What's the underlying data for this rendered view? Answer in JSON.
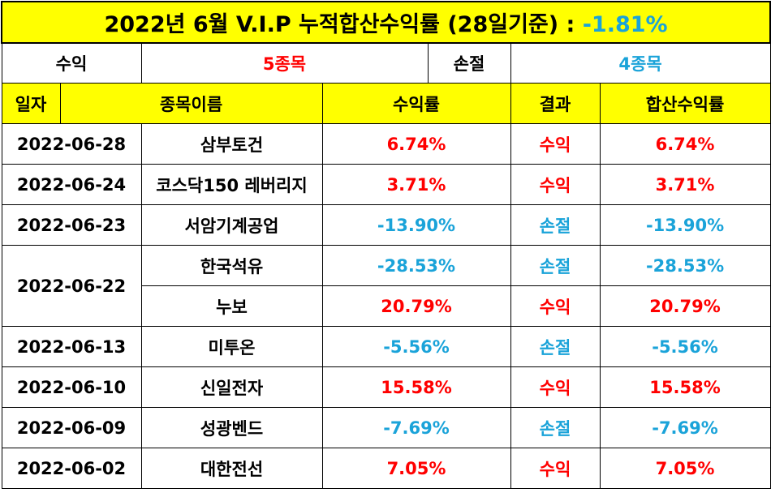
{
  "title": {
    "prefix": "2022년 6월 V.I.P 누적합산수익률 (28일기준) : ",
    "value": "-1.81%",
    "value_color": "#1aa3d9"
  },
  "summary": {
    "profit_label": "수익",
    "profit_count": "5종목",
    "loss_label": "손절",
    "loss_count": "4종목"
  },
  "header": {
    "date": "일자",
    "name": "종목이름",
    "return": "수익률",
    "result": "결과",
    "cumulative": "합산수익률"
  },
  "rows": [
    {
      "date": "2022-06-28",
      "name": "삼부토건",
      "return": "6.74%",
      "result": "수익",
      "cumulative": "6.74%",
      "type": "pos"
    },
    {
      "date": "2022-06-24",
      "name": "코스닥150 레버리지",
      "return": "3.71%",
      "result": "수익",
      "cumulative": "3.71%",
      "type": "pos"
    },
    {
      "date": "2022-06-23",
      "name": "서암기계공업",
      "return": "-13.90%",
      "result": "손절",
      "cumulative": "-13.90%",
      "type": "neg"
    },
    {
      "date": "2022-06-22",
      "name": "한국석유",
      "return": "-28.53%",
      "result": "손절",
      "cumulative": "-28.53%",
      "type": "neg"
    },
    {
      "date": "",
      "name": "누보",
      "return": "20.79%",
      "result": "수익",
      "cumulative": "20.79%",
      "type": "pos"
    },
    {
      "date": "2022-06-13",
      "name": "미투온",
      "return": "-5.56%",
      "result": "손절",
      "cumulative": "-5.56%",
      "type": "neg"
    },
    {
      "date": "2022-06-10",
      "name": "신일전자",
      "return": "15.58%",
      "result": "수익",
      "cumulative": "15.58%",
      "type": "pos"
    },
    {
      "date": "2022-06-09",
      "name": "성광벤드",
      "return": "-7.69%",
      "result": "손절",
      "cumulative": "-7.69%",
      "type": "neg"
    },
    {
      "date": "2022-06-02",
      "name": "대한전선",
      "return": "7.05%",
      "result": "수익",
      "cumulative": "7.05%",
      "type": "pos"
    }
  ],
  "colors": {
    "header_bg": "#ffff00",
    "profit": "#ff0000",
    "loss": "#1aa3d9"
  }
}
